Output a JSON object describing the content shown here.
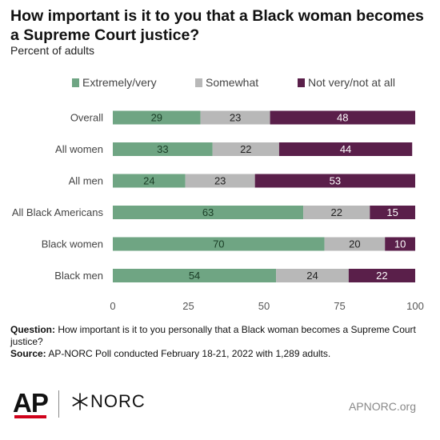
{
  "header": {
    "title": "How important is it to you that a Black woman becomes a Supreme Court justice?",
    "subtitle": "Percent of adults"
  },
  "chart_data": {
    "type": "bar",
    "orientation": "horizontal",
    "stacked": true,
    "categories": [
      "Overall",
      "All women",
      "All men",
      "All Black Americans",
      "Black women",
      "Black men"
    ],
    "series": [
      {
        "name": "Extremely/very",
        "values": [
          29,
          33,
          24,
          63,
          70,
          54
        ],
        "color": "#6fa583",
        "label_color": "#1a3d26"
      },
      {
        "name": "Somewhat",
        "values": [
          23,
          22,
          23,
          22,
          20,
          24
        ],
        "color": "#b8b8b8",
        "label_color": "#222222"
      },
      {
        "name": "Not very/not at all",
        "values": [
          48,
          44,
          53,
          15,
          10,
          22
        ],
        "color": "#5a1f4a",
        "label_color": "#ffffff"
      }
    ],
    "xlim": [
      0,
      100
    ],
    "xticks": [
      0,
      25,
      50,
      75,
      100
    ],
    "legend_position": "top",
    "grid": false
  },
  "notes": {
    "question_label": "Question:",
    "question_text": " How important is it to you personally that a Black woman becomes a Supreme Court justice?",
    "source_label": "Source:",
    "source_text": " AP-NORC Poll conducted February 18-21, 2022 with 1,289 adults."
  },
  "footer": {
    "ap_logo": "AP",
    "norc_logo": "NORC",
    "site": "APNORC.org"
  }
}
